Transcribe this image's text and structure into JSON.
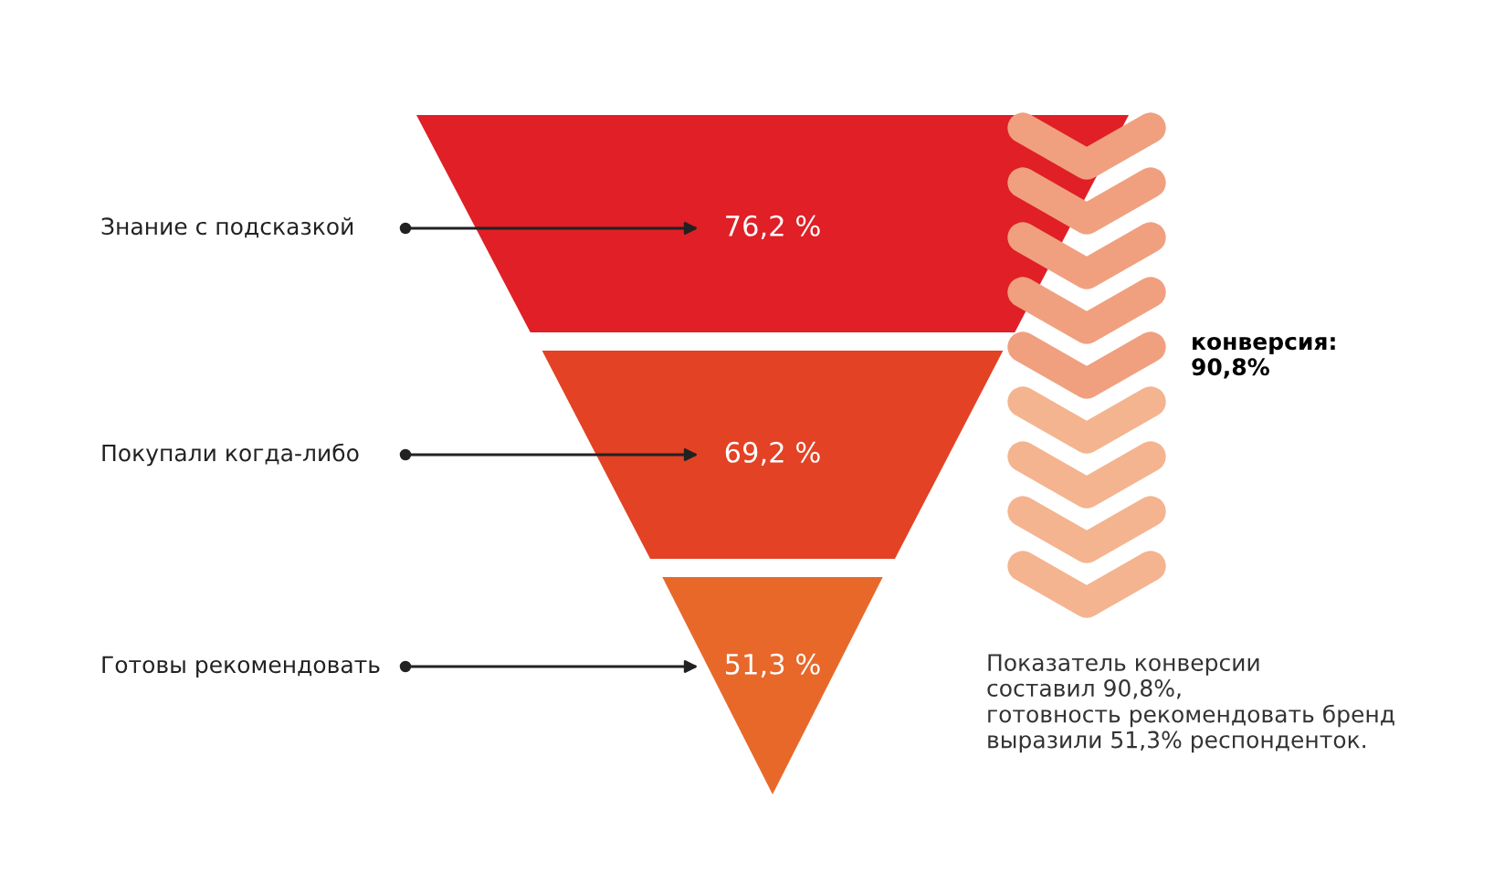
{
  "chart_data": {
    "type": "other",
    "categories": [
      "Знание с подсказкой",
      "Покупали когда-либо",
      "Готовы рекомендовать"
    ],
    "values": [
      76.2,
      69.2,
      51.3
    ],
    "value_labels": [
      "76,2 %",
      "69,2 %",
      "51,3 %"
    ],
    "colors": [
      "#e01f26",
      "#e34225",
      "#e8682a"
    ],
    "annotations": [
      "конверсия:\n90,8%",
      "Показатель конверсии\nсоставил 90,8%,\nготовность рекомендовать бренд\nвыразили 51,3% респонденток."
    ]
  }
}
